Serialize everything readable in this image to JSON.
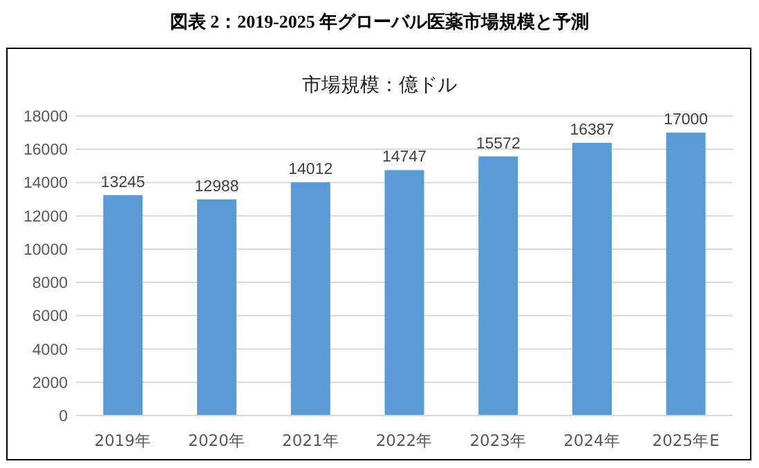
{
  "chart_data": {
    "type": "bar",
    "title": "図表 2：2019-2025 年グローバル医薬市場規模と予測",
    "subtitle": "市場規模：億ドル",
    "categories": [
      "2019年",
      "2020年",
      "2021年",
      "2022年",
      "2023年",
      "2024年",
      "2025年E"
    ],
    "values": [
      13245,
      12988,
      14012,
      14747,
      15572,
      16387,
      17000
    ],
    "color": "#5b9bd5",
    "ylim": [
      0,
      18000
    ],
    "yticks": [
      0,
      2000,
      4000,
      6000,
      8000,
      10000,
      12000,
      14000,
      16000,
      18000
    ],
    "grid": "y",
    "data_labels": true
  }
}
